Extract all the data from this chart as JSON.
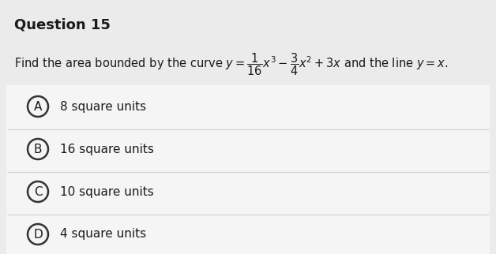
{
  "title": "Question 15",
  "title_fontsize": 13,
  "title_fontweight": "bold",
  "question_math": "$y=\\dfrac{1}{16}x^3-\\dfrac{3}{4}x^2+3x$",
  "options": [
    {
      "label": "A",
      "text": "8 square units"
    },
    {
      "label": "B",
      "text": "16 square units"
    },
    {
      "label": "C",
      "text": "10 square units"
    },
    {
      "label": "D",
      "text": "4 square units"
    }
  ],
  "bg_color": "#ebebeb",
  "option_bg_color": "#f5f5f5",
  "option_border_color": "#d0d0d0",
  "text_color": "#1a1a1a",
  "question_fontsize": 10.5,
  "option_fontsize": 11
}
